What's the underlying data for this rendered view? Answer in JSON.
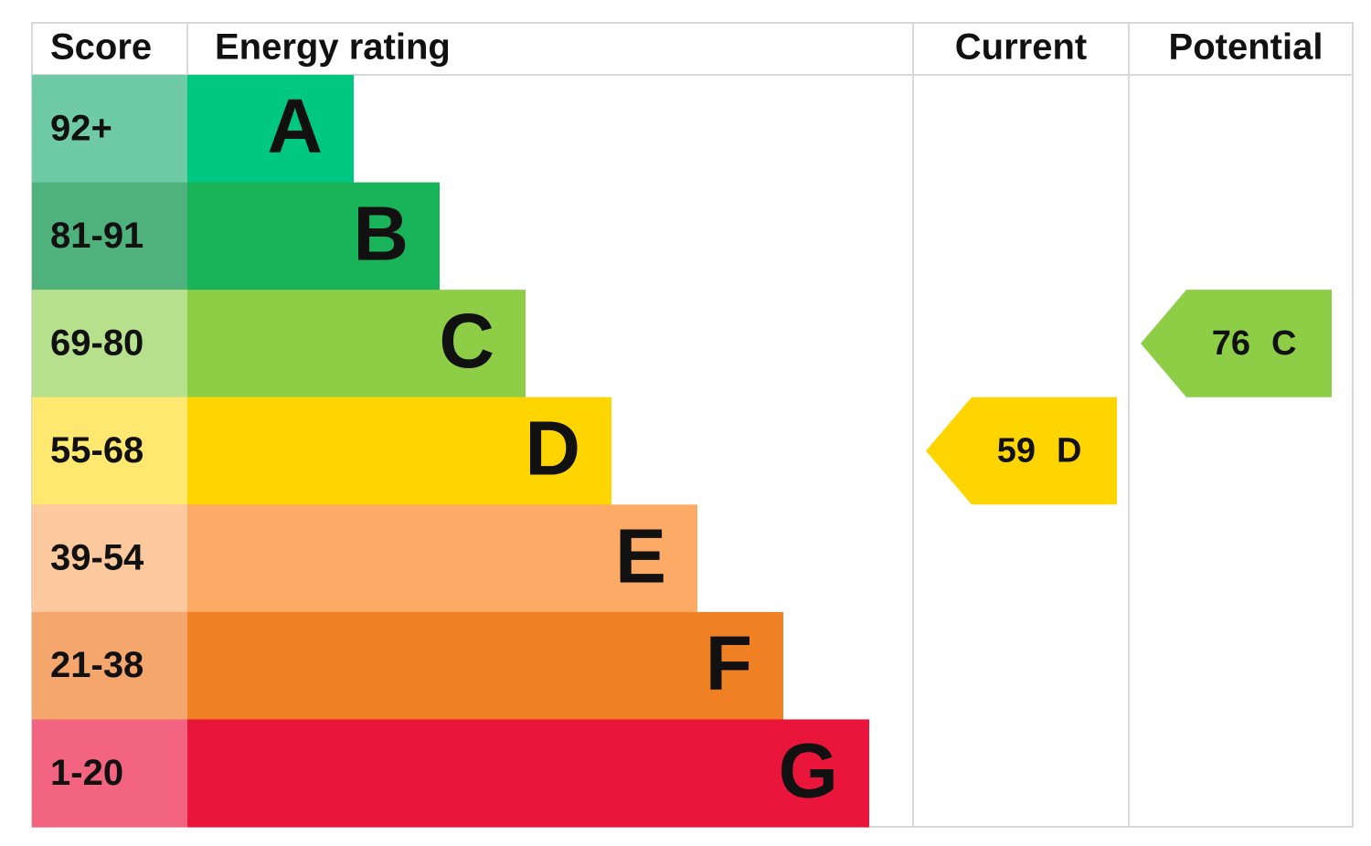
{
  "header": {
    "score": "Score",
    "rating": "Energy rating",
    "current": "Current",
    "potential": "Potential"
  },
  "bands": [
    {
      "score": "92+",
      "rating": "A",
      "color": "#00c781",
      "score_color": "#6fcba6"
    },
    {
      "score": "81-91",
      "rating": "B",
      "color": "#19b459",
      "score_color": "#4fb27d"
    },
    {
      "score": "69-80",
      "rating": "C",
      "color": "#8dce46",
      "score_color": "#b6e08c"
    },
    {
      "score": "55-68",
      "rating": "D",
      "color": "#ffd500",
      "score_color": "#ffe86f"
    },
    {
      "score": "39-54",
      "rating": "E",
      "color": "#fcaa65",
      "score_color": "#fcc89d"
    },
    {
      "score": "21-38",
      "rating": "F",
      "color": "#ef8023",
      "score_color": "#f4a66c"
    },
    {
      "score": "1-20",
      "rating": "G",
      "color": "#e9153b",
      "score_color": "#f2647f"
    }
  ],
  "current": {
    "score": 59,
    "rating": "D"
  },
  "potential": {
    "score": 76,
    "rating": "C"
  }
}
